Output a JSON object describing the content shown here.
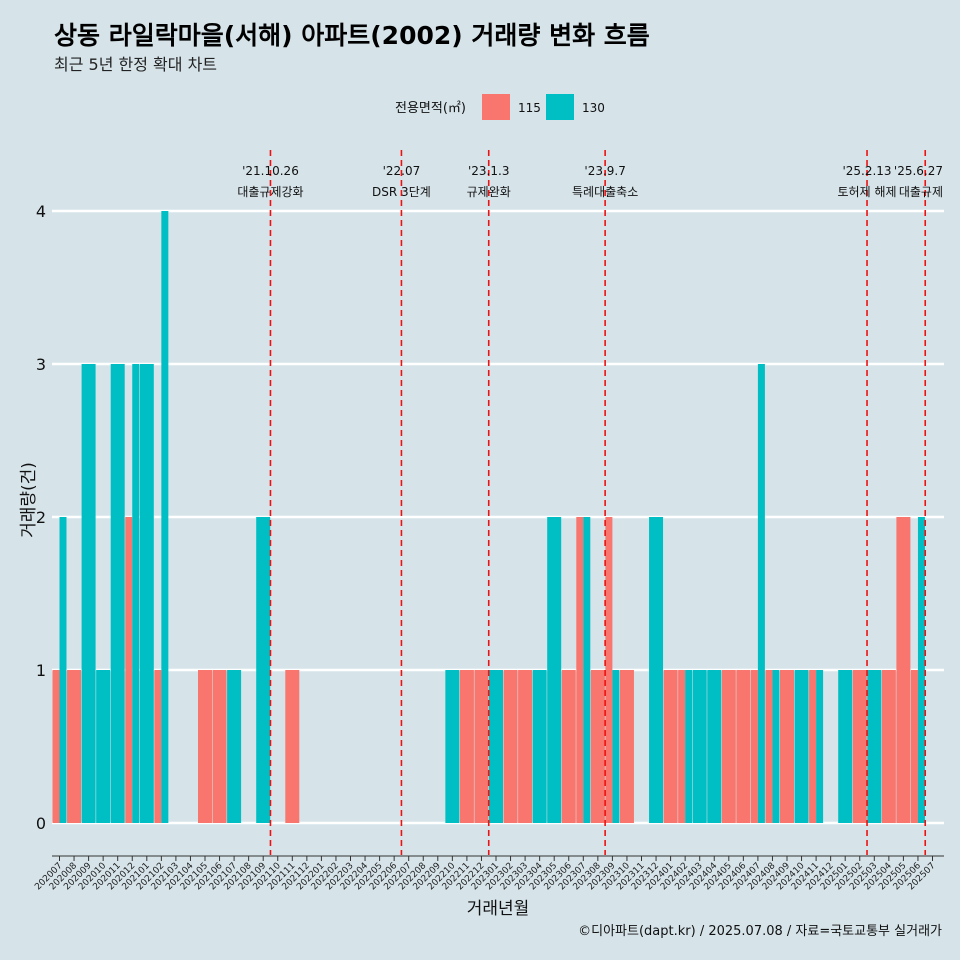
{
  "colors": {
    "c115": "#F8766D",
    "c130": "#00BFC4",
    "grid": "#ffffff",
    "event": "#ee1111"
  },
  "legend": {
    "title": "전용면적(㎡)",
    "items": [
      "115",
      "130"
    ]
  },
  "chart_data": {
    "type": "bar",
    "title": "상동 라일락마을(서해) 아파트(2002) 거래량 변화 흐름",
    "subtitle": "최근 5년 한정 확대 차트",
    "xlabel": "거래년월",
    "ylabel": "거래량(건)",
    "ylim": [
      0,
      4
    ],
    "yticks": [
      0,
      1,
      2,
      3,
      4
    ],
    "categories": [
      "202007",
      "202008",
      "202009",
      "202010",
      "202011",
      "202012",
      "202101",
      "202102",
      "202103",
      "202104",
      "202105",
      "202106",
      "202107",
      "202108",
      "202109",
      "202110",
      "202111",
      "202112",
      "202201",
      "202202",
      "202203",
      "202204",
      "202205",
      "202206",
      "202207",
      "202208",
      "202209",
      "202210",
      "202211",
      "202212",
      "202301",
      "202302",
      "202303",
      "202304",
      "202305",
      "202306",
      "202307",
      "202308",
      "202309",
      "202310",
      "202311",
      "202312",
      "202401",
      "202402",
      "202403",
      "202404",
      "202405",
      "202406",
      "202407",
      "202408",
      "202409",
      "202410",
      "202411",
      "202412",
      "202501",
      "202502",
      "202503",
      "202504",
      "202505",
      "202506",
      "202507"
    ],
    "series": [
      {
        "name": "115",
        "values": [
          1,
          1,
          0,
          0,
          0,
          2,
          0,
          1,
          0,
          0,
          1,
          1,
          0,
          0,
          0,
          0,
          1,
          0,
          0,
          0,
          0,
          0,
          0,
          0,
          0,
          0,
          0,
          0,
          1,
          1,
          0,
          1,
          1,
          0,
          0,
          1,
          2,
          1,
          2,
          1,
          0,
          0,
          1,
          1,
          0,
          0,
          1,
          1,
          1,
          1,
          1,
          0,
          1,
          0,
          0,
          1,
          0,
          1,
          2,
          1,
          0
        ]
      },
      {
        "name": "130",
        "values": [
          2,
          0,
          3,
          1,
          3,
          3,
          3,
          4,
          0,
          0,
          0,
          0,
          1,
          0,
          2,
          0,
          0,
          0,
          0,
          0,
          0,
          0,
          0,
          0,
          0,
          0,
          0,
          1,
          0,
          0,
          1,
          0,
          0,
          1,
          2,
          0,
          2,
          0,
          1,
          0,
          0,
          2,
          0,
          1,
          1,
          1,
          0,
          0,
          3,
          1,
          0,
          1,
          1,
          0,
          1,
          0,
          1,
          0,
          0,
          2,
          0
        ]
      }
    ],
    "events": [
      {
        "position": 14.5,
        "date": "'21.10.26",
        "label": "대출규제강화"
      },
      {
        "position": 23.5,
        "date": "'22.07",
        "label": "DSR 3단계"
      },
      {
        "position": 29.5,
        "date": "'23.1.3",
        "label": "규제완화"
      },
      {
        "position": 37.5,
        "date": "'23.9.7",
        "label": "특례대출축소"
      },
      {
        "position": 55.5,
        "date": "'25.2.13",
        "label": "토허제 해제"
      },
      {
        "position": 59.5,
        "date": "'25.6.27",
        "label": "대출규제"
      }
    ]
  },
  "caption": "©디아파트(dapt.kr) / 2025.07.08 / 자료=국토교통부 실거래가"
}
